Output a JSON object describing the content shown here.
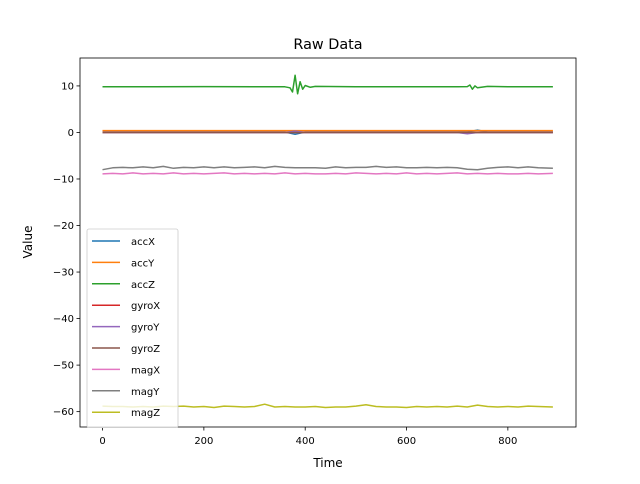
{
  "chart_data": {
    "type": "line",
    "title": "Raw Data",
    "xlabel": "Time",
    "ylabel": "Value",
    "xlim": [
      -44.5,
      934.5
    ],
    "ylim": [
      -63.3,
      16.0
    ],
    "xticks": [
      0,
      200,
      400,
      600,
      800
    ],
    "xtick_labels": [
      "0",
      "200",
      "400",
      "600",
      "800"
    ],
    "yticks": [
      10,
      0,
      -10,
      -20,
      -30,
      -40,
      -50,
      -60
    ],
    "ytick_labels": [
      "10",
      "0",
      "−10",
      "−20",
      "−30",
      "−40",
      "−50",
      "−60"
    ],
    "grid": false,
    "legend_placement": "lower-left",
    "x": [
      0,
      20,
      40,
      60,
      80,
      100,
      120,
      140,
      160,
      180,
      200,
      220,
      240,
      260,
      280,
      300,
      320,
      340,
      360,
      380,
      400,
      420,
      440,
      460,
      480,
      500,
      520,
      540,
      560,
      580,
      600,
      620,
      640,
      660,
      680,
      700,
      720,
      740,
      760,
      780,
      800,
      820,
      840,
      860,
      889
    ],
    "series": [
      {
        "name": "accX",
        "color": "#1f77b4",
        "values": [
          0.1,
          0.1,
          0.1,
          0.1,
          0.1,
          0.1,
          0.1,
          0.1,
          0.1,
          0.1,
          0.1,
          0.1,
          0.1,
          0.1,
          0.1,
          0.1,
          0.1,
          0.1,
          0.1,
          -0.4,
          0.1,
          0.1,
          0.1,
          0.1,
          0.1,
          0.1,
          0.1,
          0.1,
          0.1,
          0.1,
          0.1,
          0.1,
          0.1,
          0.1,
          0.1,
          0.1,
          0.1,
          0.5,
          0.1,
          0.1,
          0.1,
          0.1,
          0.1,
          0.1,
          0.1
        ]
      },
      {
        "name": "accY",
        "color": "#ff7f0e",
        "values": [
          0.4,
          0.4,
          0.4,
          0.4,
          0.4,
          0.4,
          0.4,
          0.4,
          0.4,
          0.4,
          0.4,
          0.4,
          0.4,
          0.4,
          0.4,
          0.4,
          0.4,
          0.4,
          0.4,
          0.4,
          0.4,
          0.4,
          0.4,
          0.4,
          0.4,
          0.4,
          0.4,
          0.4,
          0.4,
          0.4,
          0.4,
          0.4,
          0.4,
          0.4,
          0.4,
          0.4,
          0.4,
          0.4,
          0.4,
          0.4,
          0.4,
          0.4,
          0.4,
          0.4,
          0.4
        ]
      },
      {
        "name": "accZ",
        "color": "#2ca02c",
        "x": [
          0,
          100,
          200,
          300,
          360,
          370,
          375,
          380,
          385,
          390,
          395,
          400,
          410,
          420,
          500,
          600,
          700,
          720,
          725,
          730,
          735,
          740,
          760,
          800,
          889
        ],
        "values": [
          9.8,
          9.8,
          9.85,
          9.8,
          9.8,
          9.6,
          8.7,
          12.3,
          8.3,
          10.9,
          9.3,
          10.1,
          9.7,
          9.9,
          9.8,
          9.8,
          9.8,
          9.85,
          10.2,
          9.3,
          10.0,
          9.6,
          9.9,
          9.8,
          9.8
        ]
      },
      {
        "name": "gyroX",
        "color": "#d62728",
        "values": [
          0,
          0,
          0,
          0,
          0,
          0,
          0,
          0,
          0,
          0,
          0,
          0,
          0,
          0,
          0,
          0,
          0,
          0,
          0,
          0,
          0,
          0,
          0,
          0,
          0,
          0,
          0,
          0,
          0,
          0,
          0,
          0,
          0,
          0,
          0,
          0,
          0,
          0,
          0,
          0,
          0,
          0,
          0,
          0,
          0
        ]
      },
      {
        "name": "gyroY",
        "color": "#9467bd",
        "values": [
          0,
          0,
          0,
          0,
          0,
          0,
          0,
          0,
          0,
          0,
          0,
          0,
          0,
          0,
          0,
          0,
          0,
          0,
          0,
          0.3,
          0,
          0,
          0,
          0,
          0,
          0,
          0,
          0,
          0,
          0,
          0,
          0,
          0,
          0,
          0,
          0,
          -0.3,
          0,
          0,
          0,
          0,
          0,
          0,
          0,
          0
        ]
      },
      {
        "name": "gyroZ",
        "color": "#8c564b",
        "values": [
          0,
          0,
          0,
          0,
          0,
          0,
          0,
          0,
          0,
          0,
          0,
          0,
          0,
          0,
          0,
          0,
          0,
          0,
          0,
          0,
          0,
          0,
          0,
          0,
          0,
          0,
          0,
          0,
          0,
          0,
          0,
          0,
          0,
          0,
          0,
          0,
          0,
          0,
          0,
          0,
          0,
          0,
          0,
          0,
          0
        ]
      },
      {
        "name": "magX",
        "color": "#e377c2",
        "values": [
          -8.9,
          -8.8,
          -8.9,
          -8.7,
          -8.9,
          -8.8,
          -8.9,
          -8.7,
          -8.9,
          -8.8,
          -8.9,
          -8.8,
          -8.7,
          -8.9,
          -8.8,
          -8.9,
          -8.8,
          -8.9,
          -8.7,
          -8.9,
          -8.8,
          -8.9,
          -8.9,
          -8.8,
          -8.9,
          -8.7,
          -8.8,
          -8.9,
          -8.8,
          -8.9,
          -8.7,
          -8.9,
          -8.8,
          -8.9,
          -8.8,
          -8.7,
          -8.9,
          -8.8,
          -8.9,
          -8.8,
          -8.9,
          -8.9,
          -8.8,
          -8.9,
          -8.8
        ]
      },
      {
        "name": "magY",
        "color": "#7f7f7f",
        "values": [
          -8.0,
          -7.6,
          -7.5,
          -7.6,
          -7.4,
          -7.6,
          -7.3,
          -7.7,
          -7.5,
          -7.6,
          -7.4,
          -7.6,
          -7.4,
          -7.6,
          -7.5,
          -7.4,
          -7.6,
          -7.3,
          -7.5,
          -7.6,
          -7.6,
          -7.6,
          -7.7,
          -7.4,
          -7.6,
          -7.5,
          -7.5,
          -7.3,
          -7.5,
          -7.4,
          -7.6,
          -7.6,
          -7.5,
          -7.6,
          -7.5,
          -7.6,
          -7.9,
          -8.0,
          -7.7,
          -7.5,
          -7.4,
          -7.6,
          -7.4,
          -7.6,
          -7.7
        ]
      },
      {
        "name": "magZ",
        "color": "#bcbd22",
        "values": [
          -58.8,
          -58.9,
          -58.9,
          -59.0,
          -58.9,
          -59.0,
          -58.8,
          -58.9,
          -58.8,
          -59.0,
          -58.9,
          -59.1,
          -58.8,
          -58.9,
          -59.0,
          -58.9,
          -58.4,
          -59.0,
          -58.9,
          -59.0,
          -59.0,
          -58.9,
          -59.1,
          -59.0,
          -59.0,
          -58.8,
          -58.5,
          -58.9,
          -59.0,
          -59.0,
          -59.1,
          -58.9,
          -59.0,
          -58.9,
          -59.0,
          -58.8,
          -59.0,
          -58.6,
          -58.9,
          -59.0,
          -58.9,
          -59.0,
          -58.8,
          -58.9,
          -59.0
        ]
      }
    ]
  }
}
